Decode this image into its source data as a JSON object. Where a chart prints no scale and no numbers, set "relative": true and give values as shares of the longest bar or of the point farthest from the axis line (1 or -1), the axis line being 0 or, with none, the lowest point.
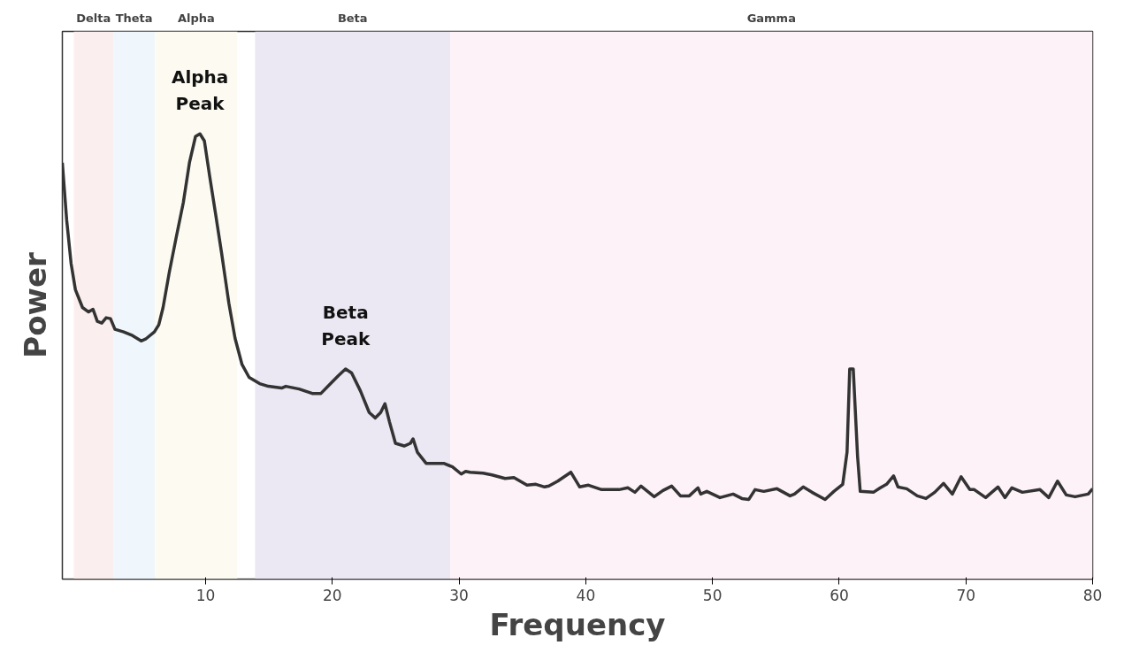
{
  "chart_data": {
    "type": "line",
    "relative": true,
    "xlabel": "Frequency",
    "ylabel": "Power",
    "xlim": [
      -1.31,
      80
    ],
    "xticks": [
      10,
      20,
      30,
      40,
      50,
      60,
      70,
      80
    ],
    "grid": false,
    "marker": "none",
    "line_style": "solid",
    "x": [
      -1.31,
      -0.97,
      -0.62,
      -0.28,
      0.28,
      0.76,
      1.11,
      1.45,
      1.8,
      2.15,
      2.49,
      2.84,
      3.53,
      4.22,
      4.91,
      5.26,
      5.95,
      6.3,
      6.64,
      7.13,
      7.68,
      8.24,
      8.72,
      9.2,
      9.55,
      9.9,
      10.31,
      10.8,
      11.28,
      11.83,
      12.32,
      12.87,
      13.43,
      14.26,
      14.95,
      15.99,
      16.33,
      17.37,
      18.41,
      19.1,
      19.79,
      20.48,
      21.04,
      21.52,
      22.21,
      22.91,
      23.39,
      23.81,
      24.15,
      24.5,
      24.98,
      25.67,
      26.16,
      26.37,
      26.71,
      27.4,
      28.1,
      28.79,
      29.48,
      30.17,
      30.52,
      30.87,
      31.9,
      32.6,
      33.63,
      34.33,
      35.36,
      36.06,
      36.75,
      37.09,
      37.79,
      38.82,
      39.52,
      40.21,
      41.25,
      42.63,
      43.32,
      43.88,
      44.36,
      45.4,
      46.09,
      46.78,
      47.47,
      48.17,
      48.86,
      49.07,
      49.55,
      50.59,
      51.63,
      52.32,
      52.87,
      53.36,
      54.05,
      55.09,
      56.12,
      56.47,
      57.16,
      57.85,
      58.89,
      59.58,
      60.28,
      60.62,
      60.83,
      61.11,
      61.45,
      61.66,
      62.7,
      63.25,
      63.74,
      64.29,
      64.64,
      65.33,
      66.16,
      66.85,
      67.54,
      68.24,
      68.93,
      69.62,
      70.31,
      70.66,
      71.56,
      72.53,
      73.08,
      73.63,
      74.46,
      75.85,
      76.54,
      77.23,
      77.92,
      78.62,
      79.65,
      80
    ],
    "series": [
      {
        "color": "#333333",
        "values": [
          0.935,
          0.807,
          0.709,
          0.65,
          0.61,
          0.6,
          0.606,
          0.579,
          0.575,
          0.587,
          0.585,
          0.561,
          0.555,
          0.547,
          0.535,
          0.539,
          0.555,
          0.571,
          0.61,
          0.689,
          0.768,
          0.846,
          0.935,
          0.994,
          1.0,
          0.984,
          0.906,
          0.817,
          0.728,
          0.62,
          0.541,
          0.482,
          0.453,
          0.439,
          0.433,
          0.429,
          0.433,
          0.427,
          0.417,
          0.417,
          0.437,
          0.457,
          0.472,
          0.463,
          0.423,
          0.374,
          0.362,
          0.374,
          0.394,
          0.354,
          0.305,
          0.299,
          0.305,
          0.315,
          0.285,
          0.26,
          0.26,
          0.26,
          0.252,
          0.236,
          0.242,
          0.24,
          0.238,
          0.234,
          0.226,
          0.228,
          0.211,
          0.213,
          0.207,
          0.209,
          0.22,
          0.24,
          0.207,
          0.211,
          0.201,
          0.201,
          0.205,
          0.195,
          0.209,
          0.185,
          0.199,
          0.209,
          0.187,
          0.187,
          0.205,
          0.191,
          0.197,
          0.183,
          0.191,
          0.181,
          0.179,
          0.201,
          0.197,
          0.203,
          0.187,
          0.191,
          0.207,
          0.195,
          0.179,
          0.197,
          0.213,
          0.285,
          0.472,
          0.472,
          0.276,
          0.197,
          0.195,
          0.205,
          0.213,
          0.232,
          0.207,
          0.203,
          0.187,
          0.181,
          0.195,
          0.215,
          0.191,
          0.23,
          0.201,
          0.201,
          0.183,
          0.207,
          0.183,
          0.205,
          0.195,
          0.201,
          0.183,
          0.22,
          0.189,
          0.185,
          0.191,
          0.203
        ]
      }
    ],
    "bands": [
      {
        "axis": "x",
        "from": -0.4,
        "to": 2.7,
        "label": "Delta",
        "color": "#fbeeee"
      },
      {
        "axis": "x",
        "from": 2.7,
        "to": 6.0,
        "label": "Theta",
        "color": "#eff7fc"
      },
      {
        "axis": "x",
        "from": 6.0,
        "to": 12.5,
        "label": "Alpha",
        "color": "#fdfbf1"
      },
      {
        "axis": "x",
        "from": 13.9,
        "to": 29.3,
        "label": "Beta",
        "color": "#ebe7f3"
      },
      {
        "axis": "x",
        "from": 29.3,
        "to": 80,
        "label": "Gamma",
        "color": "#fdf2f8"
      }
    ],
    "annotations": [
      {
        "text": "Alpha\nPeak",
        "x": 9.55,
        "y": 1.0
      },
      {
        "text": "Beta\nPeak",
        "x": 21.04,
        "y": 0.472
      }
    ]
  }
}
